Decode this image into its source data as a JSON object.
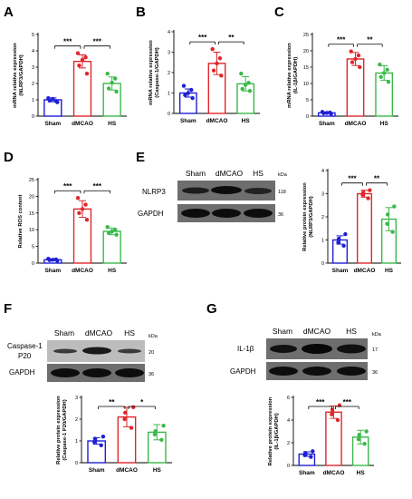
{
  "colors": {
    "Sham": "#1f1fd6",
    "dMCAO": "#e0262b",
    "HS": "#3bb94a"
  },
  "panels": {
    "A": "A",
    "B": "B",
    "C": "C",
    "D": "D",
    "E": "E",
    "F": "F",
    "G": "G"
  },
  "blots": {
    "E": {
      "lanes": [
        "Sham",
        "dMCAO",
        "HS"
      ],
      "unit": "kDa",
      "rows": [
        {
          "label": "NLRP3",
          "kda": "118"
        },
        {
          "label": "GAPDH",
          "kda": "36"
        }
      ]
    },
    "F": {
      "lanes": [
        "Sham",
        "dMCAO",
        "HS"
      ],
      "unit": "kDa",
      "rows": [
        {
          "label": "Caspase-1",
          "label2": "P20",
          "kda": "20"
        },
        {
          "label": "GAPDH",
          "kda": "36"
        }
      ]
    },
    "G": {
      "lanes": [
        "Sham",
        "dMCAO",
        "HS"
      ],
      "unit": "kDa",
      "rows": [
        {
          "label": "IL-1β",
          "kda": "17"
        },
        {
          "label": "GAPDH",
          "kda": "36"
        }
      ]
    }
  },
  "chart_data": [
    {
      "id": "A",
      "type": "bar",
      "categories": [
        "Sham",
        "dMCAO",
        "HS"
      ],
      "ylabel": "mRNA relative expression",
      "ylabel2": "(NLRP3/GAPDH)",
      "ylim": [
        0,
        5
      ],
      "yticks": [
        0,
        1,
        2,
        3,
        4,
        5
      ],
      "values": [
        1.0,
        3.35,
        2.0
      ],
      "errors": [
        0.12,
        0.4,
        0.4
      ],
      "points": [
        [
          0.85,
          0.95,
          1.05,
          0.92,
          1.1
        ],
        [
          2.6,
          3.1,
          3.45,
          3.6,
          3.85
        ],
        [
          1.5,
          1.7,
          2.05,
          2.3,
          2.6
        ]
      ],
      "significance": [
        {
          "from": 0,
          "to": 1,
          "label": "***"
        },
        {
          "from": 1,
          "to": 2,
          "label": "***"
        }
      ]
    },
    {
      "id": "B",
      "type": "bar",
      "categories": [
        "Sham",
        "dMCAO",
        "HS"
      ],
      "ylabel": "mRNA relative expression",
      "ylabel2": "(Caspase-1/GAPDH)",
      "ylim": [
        0,
        4
      ],
      "yticks": [
        0,
        1,
        2,
        3,
        4
      ],
      "values": [
        1.0,
        2.45,
        1.45
      ],
      "errors": [
        0.2,
        0.55,
        0.35
      ],
      "points": [
        [
          0.75,
          0.9,
          1.0,
          1.15,
          1.35
        ],
        [
          1.85,
          2.1,
          2.45,
          2.7,
          3.15
        ],
        [
          1.1,
          1.2,
          1.4,
          1.5,
          1.95
        ]
      ],
      "significance": [
        {
          "from": 0,
          "to": 1,
          "label": "***"
        },
        {
          "from": 1,
          "to": 2,
          "label": "**"
        }
      ]
    },
    {
      "id": "C",
      "type": "bar",
      "categories": [
        "Sham",
        "dMCAO",
        "HS"
      ],
      "ylabel": "mRNA relative expression",
      "ylabel2": "(IL-1β/GAPDH)",
      "ylim": [
        0,
        25
      ],
      "yticks": [
        0,
        5,
        10,
        15,
        20,
        25
      ],
      "values": [
        1.0,
        17.5,
        13.2
      ],
      "errors": [
        0.2,
        2.0,
        2.2
      ],
      "points": [
        [
          0.7,
          0.9,
          1.0,
          1.1,
          1.3
        ],
        [
          15.0,
          16.5,
          17.5,
          18.6,
          19.8
        ],
        [
          10.5,
          12.0,
          13.2,
          14.2,
          15.8
        ]
      ],
      "significance": [
        {
          "from": 0,
          "to": 1,
          "label": "***"
        },
        {
          "from": 1,
          "to": 2,
          "label": "**"
        }
      ]
    },
    {
      "id": "D",
      "type": "bar",
      "categories": [
        "Sham",
        "dMCAO",
        "HS"
      ],
      "ylabel": "Relative ROS content",
      "ylabel2": "",
      "ylim": [
        0,
        25
      ],
      "yticks": [
        0,
        5,
        10,
        15,
        20,
        25
      ],
      "values": [
        1.0,
        16.2,
        9.5
      ],
      "errors": [
        0.2,
        2.5,
        1.0
      ],
      "points": [
        [
          0.7,
          0.9,
          1.0,
          1.1,
          1.3
        ],
        [
          13.0,
          15.0,
          16.2,
          17.5,
          19.5
        ],
        [
          8.5,
          9.0,
          9.5,
          10.0,
          10.8
        ]
      ],
      "significance": [
        {
          "from": 0,
          "to": 1,
          "label": "***"
        },
        {
          "from": 1,
          "to": 2,
          "label": "***"
        }
      ]
    },
    {
      "id": "E",
      "type": "bar",
      "categories": [
        "Sham",
        "dMCAO",
        "HS"
      ],
      "ylabel": "Relative protein expression",
      "ylabel2": "(NLRP3/GAPDH)",
      "ylim": [
        0,
        4
      ],
      "yticks": [
        0,
        1,
        2,
        3,
        4
      ],
      "values": [
        1.0,
        3.0,
        1.9
      ],
      "errors": [
        0.18,
        0.15,
        0.5
      ],
      "points": [
        [
          0.75,
          0.9,
          1.05,
          1.25
        ],
        [
          2.8,
          2.95,
          3.05,
          3.15
        ],
        [
          1.35,
          1.7,
          2.1,
          2.45
        ]
      ],
      "significance": [
        {
          "from": 0,
          "to": 1,
          "label": "***"
        },
        {
          "from": 1,
          "to": 2,
          "label": "**"
        }
      ]
    },
    {
      "id": "F",
      "type": "bar",
      "categories": [
        "Sham",
        "dMCAO",
        "HS"
      ],
      "ylabel": "Relative protein expression",
      "ylabel2": "(Caspase-1 P20/GAPDH)",
      "ylim": [
        0,
        3
      ],
      "yticks": [
        0,
        1,
        2,
        3
      ],
      "values": [
        1.0,
        2.1,
        1.4
      ],
      "errors": [
        0.15,
        0.45,
        0.35
      ],
      "points": [
        [
          0.8,
          0.95,
          1.1,
          1.2
        ],
        [
          1.6,
          2.0,
          2.3,
          2.55
        ],
        [
          1.05,
          1.3,
          1.45,
          1.7
        ]
      ],
      "significance": [
        {
          "from": 0,
          "to": 1,
          "label": "**"
        },
        {
          "from": 1,
          "to": 2,
          "label": "*"
        }
      ]
    },
    {
      "id": "G",
      "type": "bar",
      "categories": [
        "Sham",
        "dMCAO",
        "HS"
      ],
      "ylabel": "Relative protein expression",
      "ylabel2": "(IL-1β/GAPDH)",
      "ylim": [
        0,
        6
      ],
      "yticks": [
        0,
        2,
        4,
        6
      ],
      "values": [
        1.0,
        4.7,
        2.5
      ],
      "errors": [
        0.2,
        0.55,
        0.6
      ],
      "points": [
        [
          0.75,
          0.9,
          1.1,
          1.25
        ],
        [
          4.0,
          4.5,
          4.9,
          5.3
        ],
        [
          1.9,
          2.3,
          2.7,
          3.0
        ]
      ],
      "significance": [
        {
          "from": 0,
          "to": 1,
          "label": "***"
        },
        {
          "from": 1,
          "to": 2,
          "label": "***"
        }
      ]
    }
  ]
}
